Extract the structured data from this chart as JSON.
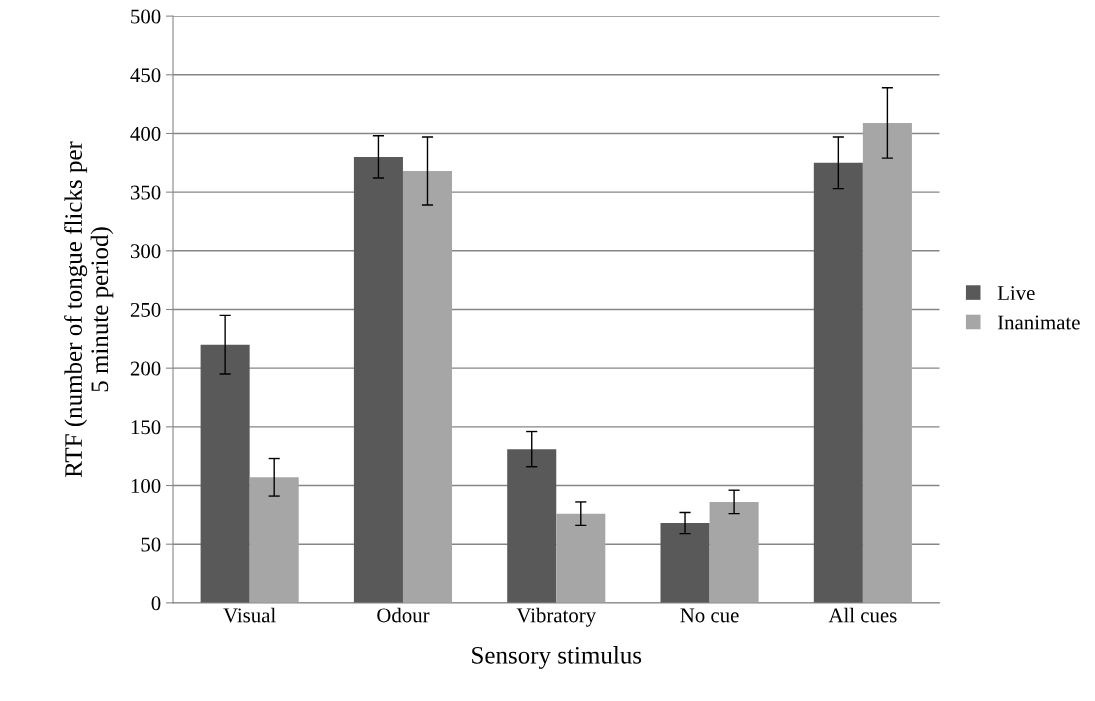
{
  "chart_data": {
    "type": "bar",
    "xlabel": "Sensory stimulus",
    "ylabel": "RTF (number of tongue flicks per\n5 minute period)",
    "categories": [
      "Visual",
      "Odour",
      "Vibratory",
      "No cue",
      "All cues"
    ],
    "series": [
      {
        "name": "Live",
        "color": "#595959",
        "values": [
          220,
          380,
          131,
          68,
          375
        ],
        "errors": [
          25,
          18,
          15,
          9,
          22
        ]
      },
      {
        "name": "Inanimate",
        "color": "#a6a6a6",
        "values": [
          107,
          368,
          76,
          86,
          409
        ],
        "errors": [
          16,
          29,
          10,
          10,
          30
        ]
      }
    ],
    "ylim": [
      0,
      500
    ],
    "yticks": [
      0,
      50,
      100,
      150,
      200,
      250,
      300,
      350,
      400,
      450,
      500
    ],
    "grid": "y",
    "legend": "right"
  }
}
